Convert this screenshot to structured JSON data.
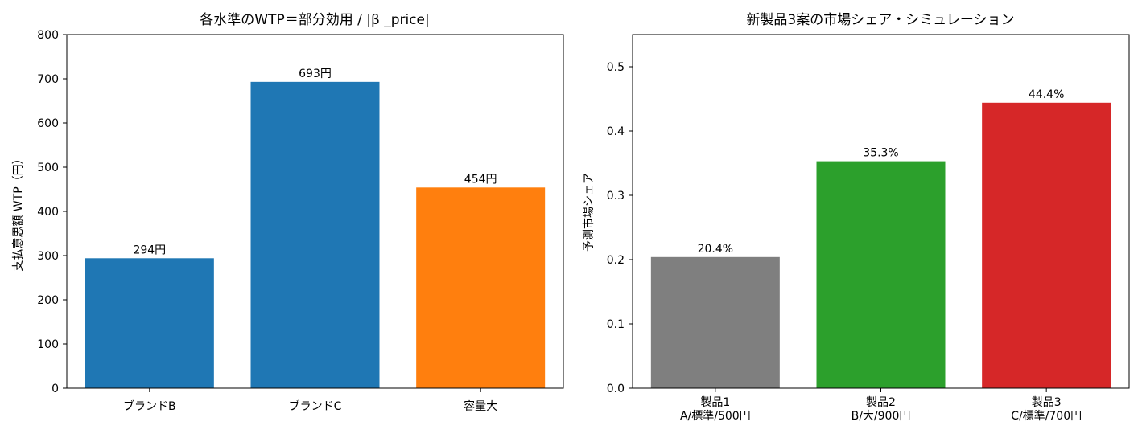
{
  "chart_data": [
    {
      "type": "bar",
      "title": "各水準のWTP＝部分効用 / |β _price|",
      "xlabel": "",
      "ylabel": "支払意思額 WTP（円）",
      "categories": [
        "ブランドB",
        "ブランドC",
        "容量大"
      ],
      "values": [
        294,
        693,
        454
      ],
      "value_labels": [
        "294円",
        "693円",
        "454円"
      ],
      "colors": [
        "#1f77b4",
        "#1f77b4",
        "#ff7f0e"
      ],
      "ylim": [
        0,
        800
      ],
      "yticks": [
        "0",
        "100",
        "200",
        "300",
        "400",
        "500",
        "600",
        "700",
        "800"
      ],
      "grid": false
    },
    {
      "type": "bar",
      "title": "新製品3案の市場シェア・シミュレーション",
      "xlabel": "",
      "ylabel": "予測市場シェア",
      "categories": [
        [
          "製品1",
          "A/標準/500円"
        ],
        [
          "製品2",
          "B/大/900円"
        ],
        [
          "製品3",
          "C/標準/700円"
        ]
      ],
      "values": [
        0.204,
        0.353,
        0.444
      ],
      "value_labels": [
        "20.4%",
        "35.3%",
        "44.4%"
      ],
      "colors": [
        "#7f7f7f",
        "#2ca02c",
        "#d62728"
      ],
      "ylim": [
        0,
        0.55
      ],
      "yticks": [
        "0.0",
        "0.1",
        "0.2",
        "0.3",
        "0.4",
        "0.5"
      ],
      "grid": false
    }
  ]
}
